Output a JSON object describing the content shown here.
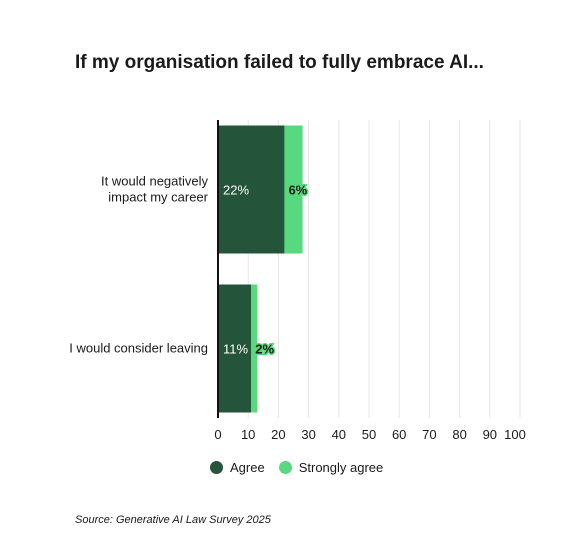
{
  "chart_data": {
    "type": "bar",
    "orientation": "horizontal",
    "stacked": true,
    "title": "If my organisation failed to fully embrace AI...",
    "categories": [
      "It would negatively impact my career",
      "I would consider leaving"
    ],
    "series": [
      {
        "name": "Agree",
        "values": [
          22,
          11
        ],
        "labels": [
          "22%",
          "11%"
        ],
        "color": "#24553a"
      },
      {
        "name": "Strongly agree",
        "values": [
          6,
          2
        ],
        "labels": [
          "6%",
          "2%"
        ],
        "color": "#57d97d"
      }
    ],
    "xlim": [
      0,
      100
    ],
    "xticks": [
      0,
      10,
      20,
      30,
      40,
      50,
      60,
      70,
      80,
      90,
      100
    ],
    "grid": true,
    "legend_position": "bottom",
    "source": "Source: Generative AI Law Survey 2025"
  }
}
